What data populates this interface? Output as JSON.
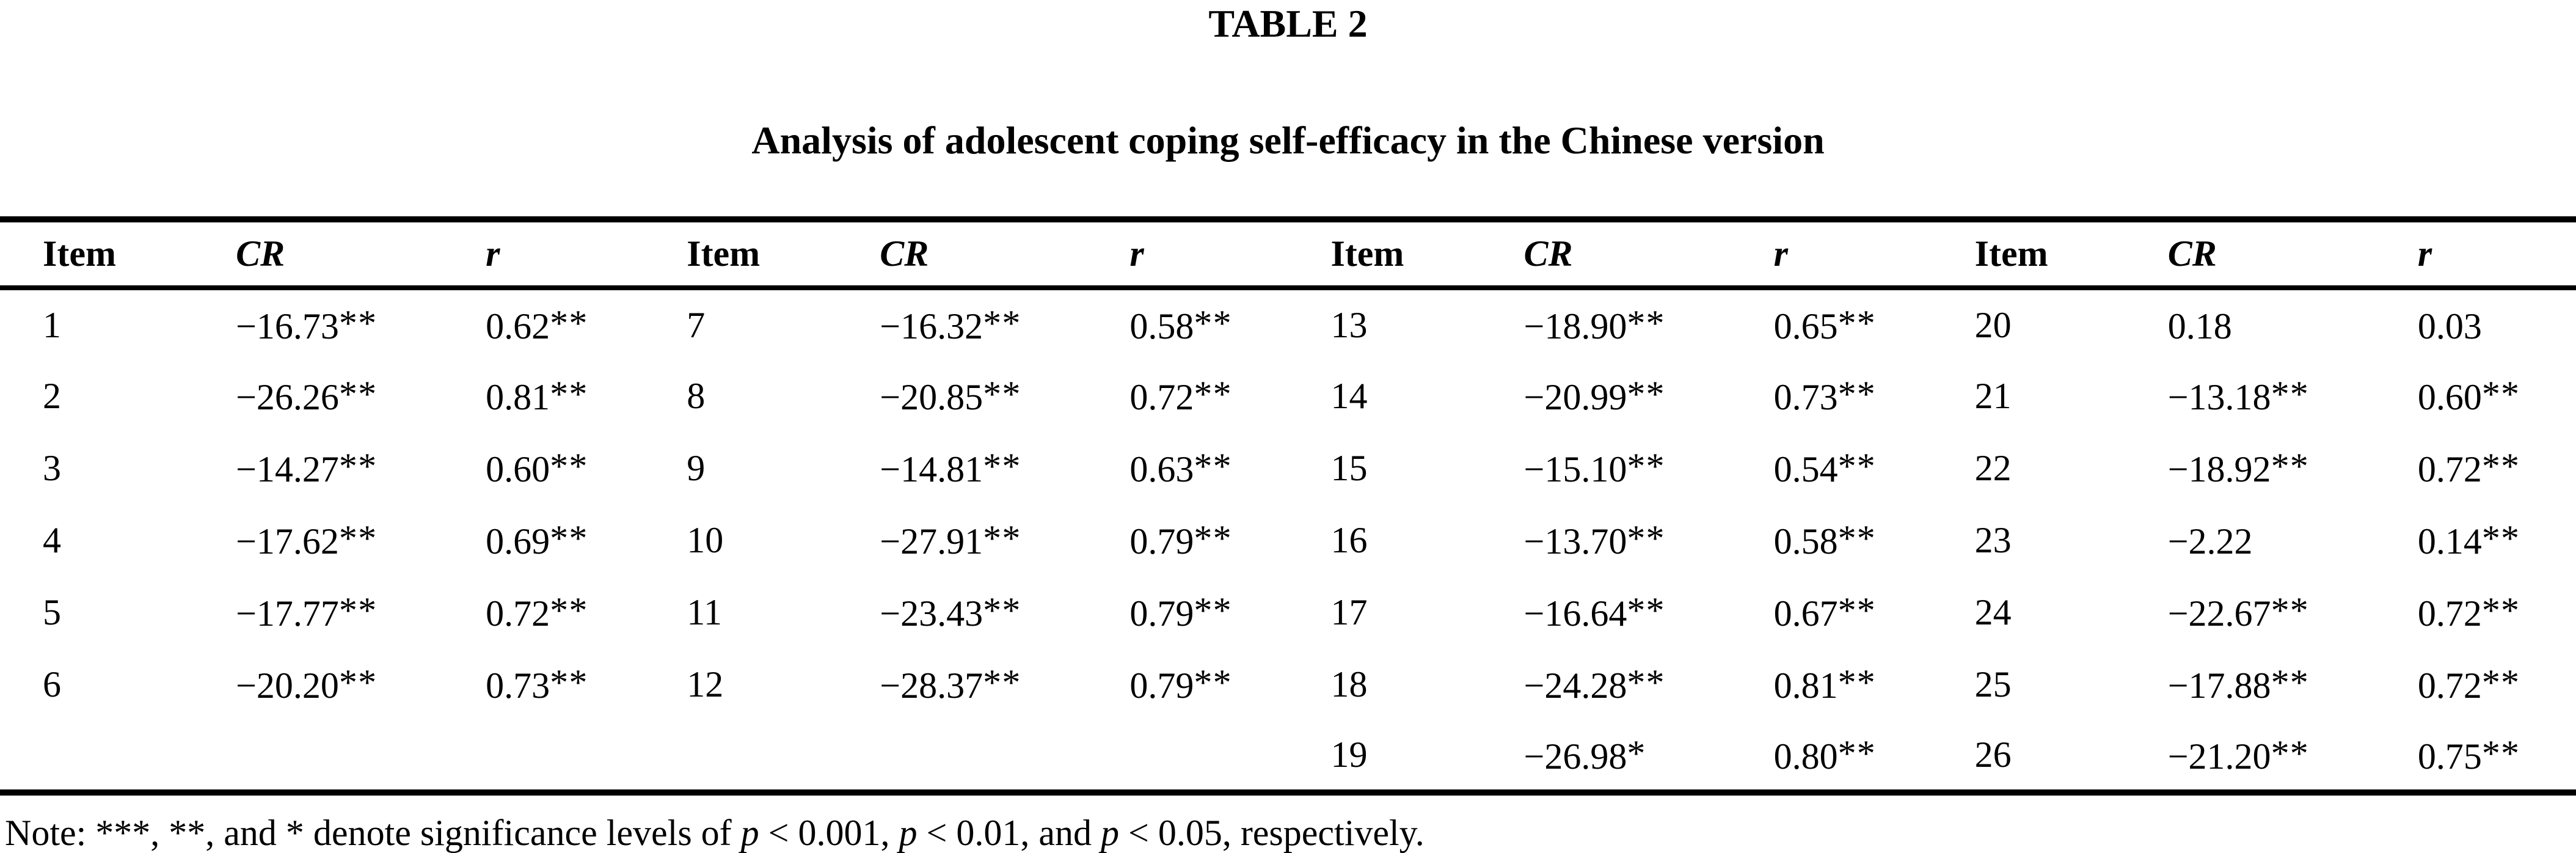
{
  "page": {
    "background": "#ffffff",
    "text_color": "#000000"
  },
  "title": "TABLE 2",
  "subtitle": "Analysis of adolescent coping self-efficacy in the Chinese version",
  "headers": {
    "item": "Item",
    "cr": "CR",
    "r": "r"
  },
  "table": {
    "rows": [
      {
        "g": [
          {
            "i": "1",
            "c": "−16.73",
            "cs": "**",
            "r": "0.62",
            "rs": "**"
          },
          {
            "i": "7",
            "c": "−16.32",
            "cs": "**",
            "r": "0.58",
            "rs": "**"
          },
          {
            "i": "13",
            "c": "−18.90",
            "cs": "**",
            "r": "0.65",
            "rs": "**"
          },
          {
            "i": "20",
            "c": "0.18",
            "cs": "",
            "r": "0.03",
            "rs": ""
          }
        ]
      },
      {
        "g": [
          {
            "i": "2",
            "c": "−26.26",
            "cs": "**",
            "r": "0.81",
            "rs": "**"
          },
          {
            "i": "8",
            "c": "−20.85",
            "cs": "**",
            "r": "0.72",
            "rs": "**"
          },
          {
            "i": "14",
            "c": "−20.99",
            "cs": "**",
            "r": "0.73",
            "rs": "**"
          },
          {
            "i": "21",
            "c": "−13.18",
            "cs": "**",
            "r": "0.60",
            "rs": "**"
          }
        ]
      },
      {
        "g": [
          {
            "i": "3",
            "c": "−14.27",
            "cs": "**",
            "r": "0.60",
            "rs": "**"
          },
          {
            "i": "9",
            "c": "−14.81",
            "cs": "**",
            "r": "0.63",
            "rs": "**"
          },
          {
            "i": "15",
            "c": "−15.10",
            "cs": "**",
            "r": "0.54",
            "rs": "**"
          },
          {
            "i": "22",
            "c": "−18.92",
            "cs": "**",
            "r": "0.72",
            "rs": "**"
          }
        ]
      },
      {
        "g": [
          {
            "i": "4",
            "c": "−17.62",
            "cs": "**",
            "r": "0.69",
            "rs": "**"
          },
          {
            "i": "10",
            "c": "−27.91",
            "cs": "**",
            "r": "0.79",
            "rs": "**"
          },
          {
            "i": "16",
            "c": "−13.70",
            "cs": "**",
            "r": "0.58",
            "rs": "**"
          },
          {
            "i": "23",
            "c": "−2.22",
            "cs": "",
            "r": "0.14",
            "rs": "**"
          }
        ]
      },
      {
        "g": [
          {
            "i": "5",
            "c": "−17.77",
            "cs": "**",
            "r": "0.72",
            "rs": "**"
          },
          {
            "i": "11",
            "c": "−23.43",
            "cs": "**",
            "r": "0.79",
            "rs": "**"
          },
          {
            "i": "17",
            "c": "−16.64",
            "cs": "**",
            "r": "0.67",
            "rs": "**"
          },
          {
            "i": "24",
            "c": "−22.67",
            "cs": "**",
            "r": "0.72",
            "rs": "**"
          }
        ]
      },
      {
        "g": [
          {
            "i": "6",
            "c": "−20.20",
            "cs": "**",
            "r": "0.73",
            "rs": "**"
          },
          {
            "i": "12",
            "c": "−28.37",
            "cs": "**",
            "r": "0.79",
            "rs": "**"
          },
          {
            "i": "18",
            "c": "−24.28",
            "cs": "**",
            "r": "0.81",
            "rs": "**"
          },
          {
            "i": "25",
            "c": "−17.88",
            "cs": "**",
            "r": "0.72",
            "rs": "**"
          }
        ]
      },
      {
        "g": [
          {
            "i": "",
            "c": "",
            "cs": "",
            "r": "",
            "rs": ""
          },
          {
            "i": "",
            "c": "",
            "cs": "",
            "r": "",
            "rs": ""
          },
          {
            "i": "19",
            "c": "−26.98",
            "cs": "*",
            "r": "0.80",
            "rs": "**"
          },
          {
            "i": "26",
            "c": "−21.20",
            "cs": "**",
            "r": "0.75",
            "rs": "**"
          }
        ]
      }
    ]
  },
  "note": {
    "segments": {
      "s0": "Note: ***, **, and * denote significance levels of ",
      "s1": "p",
      "s2": " < 0.001, ",
      "s3": "p",
      "s4": " < 0.01, and ",
      "s5": "p",
      "s6": " < 0.05, respectively."
    }
  }
}
